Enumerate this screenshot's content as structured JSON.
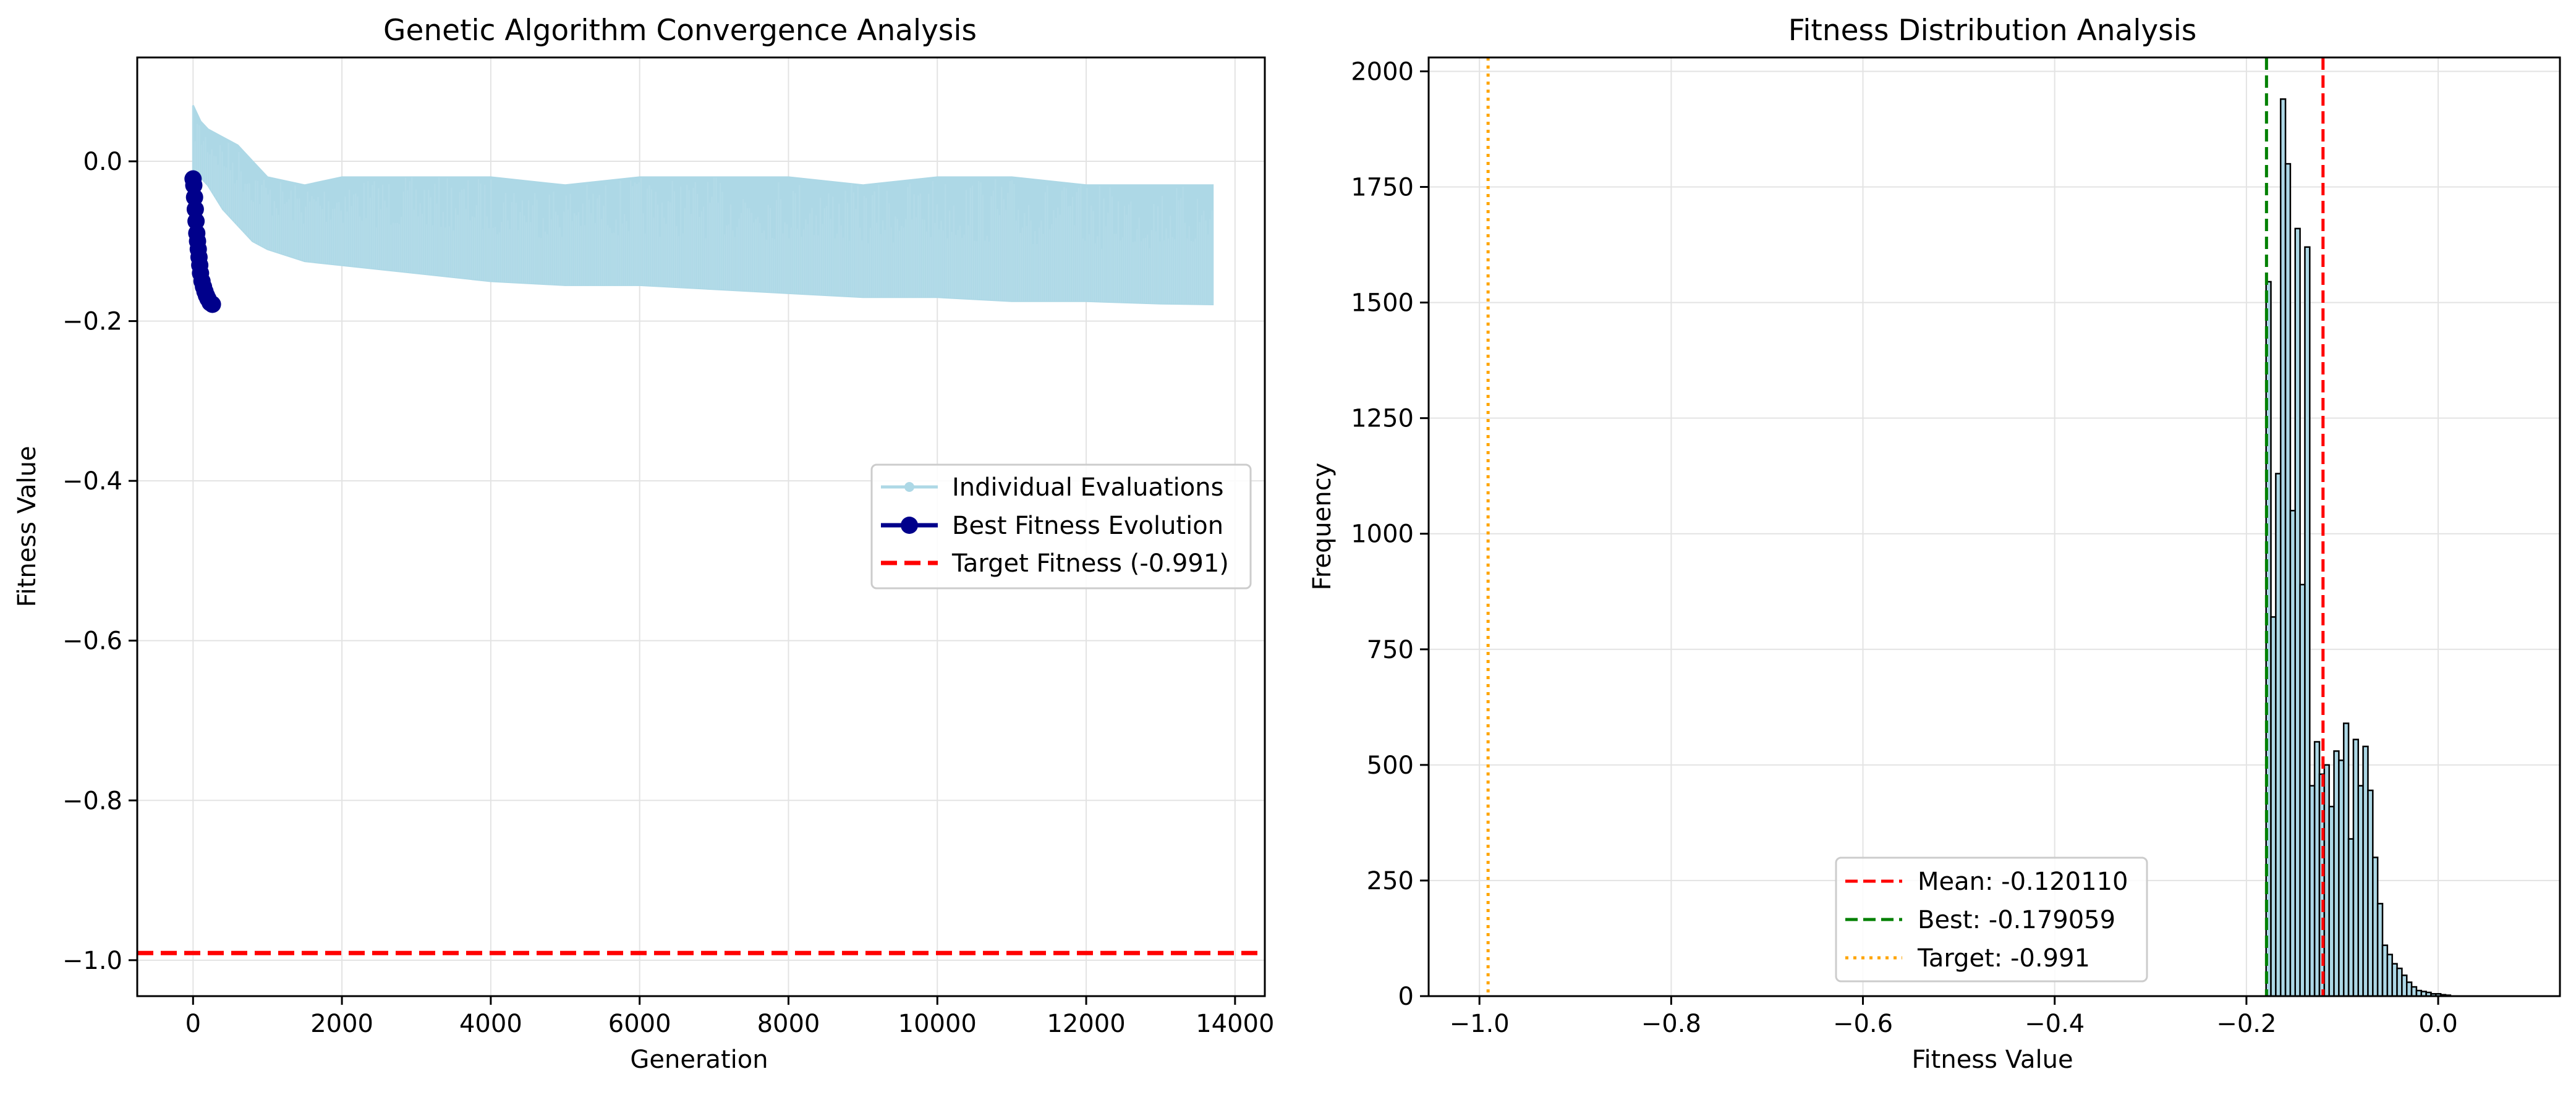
{
  "colors": {
    "individual": "#add8e6",
    "best": "#00008b",
    "target_left": "#ff0000",
    "hist_fill": "#add8e6",
    "hist_edge": "#000000",
    "mean_line": "#ff0000",
    "best_line": "#008000",
    "target_line": "#ffa500",
    "grid": "#e3e3e3"
  },
  "chart_data": [
    {
      "type": "line",
      "title": "Genetic Algorithm Convergence Analysis",
      "xlabel": "Generation",
      "ylabel": "Fitness Value",
      "xlim": [
        -750,
        14400
      ],
      "ylim": [
        -1.045,
        0.13
      ],
      "xticks": [
        0,
        2000,
        4000,
        6000,
        8000,
        10000,
        12000,
        14000
      ],
      "xtick_labels": [
        "0",
        "2000",
        "4000",
        "6000",
        "8000",
        "10000",
        "12000",
        "14000"
      ],
      "yticks": [
        0.0,
        -0.2,
        -0.4,
        -0.6,
        -0.8,
        -1.0
      ],
      "ytick_labels": [
        "0.0",
        "−0.2",
        "−0.4",
        "−0.6",
        "−0.8",
        "−1.0"
      ],
      "grid": true,
      "legend_position": "center-right",
      "legend": [
        "Individual Evaluations",
        "Best Fitness Evolution",
        "Target Fitness (-0.991)"
      ],
      "series": [
        {
          "name": "Individual Evaluations",
          "style": "band",
          "x": [
            0,
            100,
            200,
            400,
            600,
            800,
            1000,
            1500,
            2000,
            3000,
            4000,
            5000,
            6000,
            7000,
            8000,
            9000,
            10000,
            11000,
            12000,
            13000,
            13700
          ],
          "y_upper": [
            0.07,
            0.05,
            0.04,
            0.03,
            0.02,
            0.0,
            -0.02,
            -0.03,
            -0.02,
            -0.02,
            -0.02,
            -0.03,
            -0.02,
            -0.02,
            -0.02,
            -0.03,
            -0.02,
            -0.02,
            -0.03,
            -0.03,
            -0.03
          ],
          "y_lower": [
            -0.01,
            -0.02,
            -0.03,
            -0.06,
            -0.08,
            -0.1,
            -0.11,
            -0.125,
            -0.13,
            -0.14,
            -0.15,
            -0.155,
            -0.155,
            -0.16,
            -0.165,
            -0.17,
            -0.17,
            -0.175,
            -0.175,
            -0.178,
            -0.179
          ]
        },
        {
          "name": "Best Fitness Evolution",
          "x": [
            0,
            10,
            20,
            30,
            40,
            50,
            60,
            70,
            80,
            90,
            100,
            120,
            140,
            160,
            180,
            200,
            230,
            260
          ],
          "y": [
            -0.022,
            -0.03,
            -0.045,
            -0.06,
            -0.075,
            -0.09,
            -0.1,
            -0.11,
            -0.12,
            -0.13,
            -0.14,
            -0.15,
            -0.157,
            -0.163,
            -0.168,
            -0.172,
            -0.177,
            -0.179
          ]
        }
      ],
      "hlines": [
        {
          "name": "Target Fitness (-0.991)",
          "y": -0.991
        }
      ]
    },
    {
      "type": "bar",
      "title": "Fitness Distribution Analysis",
      "xlabel": "Fitness Value",
      "ylabel": "Frequency",
      "xlim": [
        -1.053,
        0.127
      ],
      "ylim": [
        0,
        2030
      ],
      "xticks": [
        -1.0,
        -0.8,
        -0.6,
        -0.4,
        -0.2,
        0.0
      ],
      "xtick_labels": [
        "−1.0",
        "−0.8",
        "−0.6",
        "−0.4",
        "−0.2",
        "0.0"
      ],
      "yticks": [
        0,
        250,
        500,
        750,
        1000,
        1250,
        1500,
        1750,
        2000
      ],
      "ytick_labels": [
        "0",
        "250",
        "500",
        "750",
        "1000",
        "1250",
        "1500",
        "1750",
        "2000"
      ],
      "grid": true,
      "legend_position": "lower-center",
      "legend": [
        "Mean: -0.120110",
        "Best: -0.179059",
        "Target: -0.991"
      ],
      "bin_start": -0.1795,
      "bin_width": 0.00506,
      "values": [
        1545,
        820,
        1130,
        1940,
        1800,
        1050,
        1660,
        890,
        1620,
        455,
        550,
        480,
        500,
        410,
        530,
        510,
        590,
        340,
        555,
        455,
        540,
        445,
        300,
        200,
        110,
        90,
        70,
        60,
        45,
        30,
        20,
        12,
        10,
        8,
        5,
        5,
        3,
        2
      ],
      "vlines": [
        {
          "name": "Mean: -0.120110",
          "x": -0.12011,
          "style": "dashed"
        },
        {
          "name": "Best: -0.179059",
          "x": -0.179059,
          "style": "dashed"
        },
        {
          "name": "Target: -0.991",
          "x": -0.991,
          "style": "dotted"
        }
      ]
    }
  ]
}
